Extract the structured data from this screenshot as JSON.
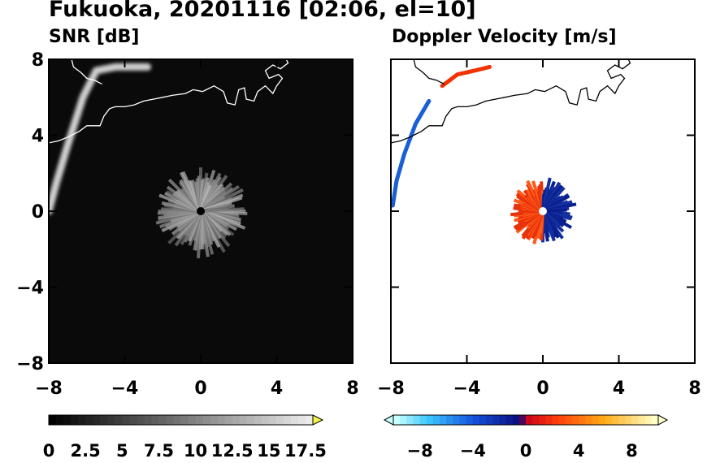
{
  "title": "Fukuoka, 20201116 [02:06, el=10]",
  "chart_data": [
    {
      "type": "heatmap",
      "title": "SNR [dB]",
      "xlim": [
        -8,
        8
      ],
      "ylim": [
        -8,
        8
      ],
      "x_ticks": [
        -8,
        -4,
        0,
        4,
        8
      ],
      "y_ticks": [
        -8,
        -4,
        0,
        4,
        8
      ],
      "x_tick_labels": [
        "−8",
        "−4",
        "0",
        "4",
        "8"
      ],
      "y_tick_labels": [
        "−8",
        "−4",
        "0",
        "4",
        "8"
      ],
      "background_color": "#0a0a0a",
      "features": {
        "echo_center": [
          0,
          0
        ],
        "echo_radius": 2.5,
        "coastal_band": [
          [
            -8,
            0
          ],
          [
            -7.6,
            1.5
          ],
          [
            -7,
            3.5
          ],
          [
            -6.2,
            6.0
          ],
          [
            -5.5,
            7.4
          ],
          [
            -4.5,
            7.6
          ],
          [
            -2.8,
            7.6
          ]
        ]
      },
      "colorbar": {
        "ticks": [
          0,
          2.5,
          5,
          7.5,
          10,
          12.5,
          15,
          17.5
        ],
        "labels": [
          "0",
          "2.5",
          "5",
          "7.5",
          "10",
          "12.5",
          "15",
          "17.5"
        ],
        "range": [
          0,
          18
        ],
        "extend": "max",
        "cmap": "gray"
      }
    },
    {
      "type": "heatmap",
      "title": "Doppler Velocity [m/s]",
      "xlim": [
        -8,
        8
      ],
      "ylim": [
        -8,
        8
      ],
      "x_ticks": [
        -8,
        -4,
        0,
        4,
        8
      ],
      "y_ticks": [
        -8,
        -4,
        0,
        4,
        8
      ],
      "x_tick_labels": [
        "−8",
        "−4",
        "0",
        "4",
        "8"
      ],
      "background_color": "#ffffff",
      "features": {
        "echo_center": [
          0,
          0
        ],
        "echo_radius": 1.8,
        "west_half": "red (positive)",
        "east_half": "blue (negative)"
      },
      "colorbar": {
        "ticks": [
          -8,
          -4,
          0,
          4,
          8
        ],
        "labels": [
          "−8",
          "−4",
          "0",
          "4",
          "8"
        ],
        "range": [
          -10,
          10
        ],
        "extend": "both",
        "cmap": "blue-white-red"
      }
    }
  ]
}
